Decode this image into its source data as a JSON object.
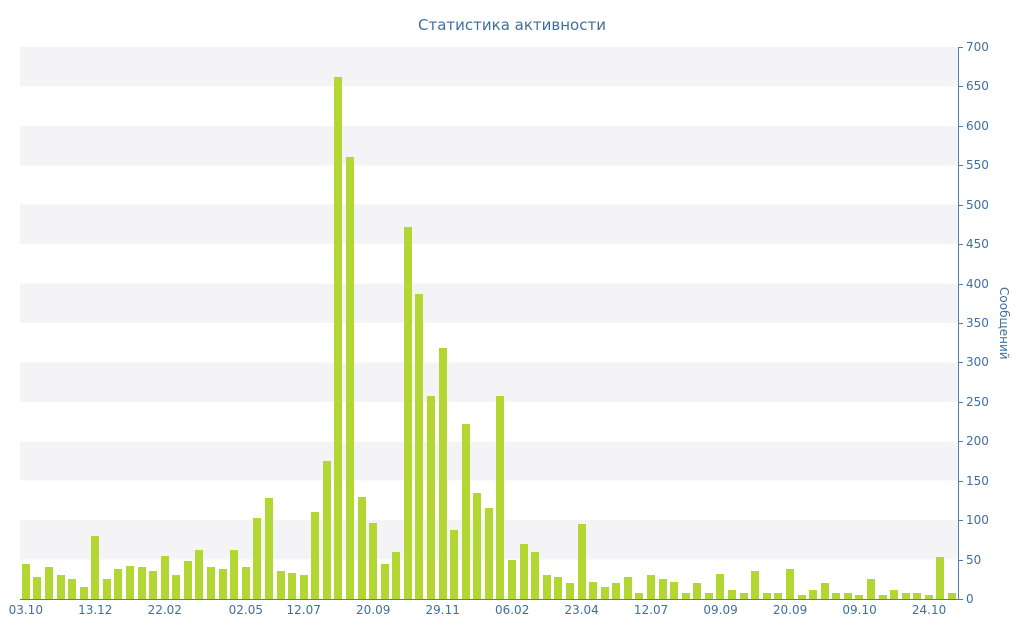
{
  "title": "Статистика активности",
  "chart_data": {
    "type": "bar",
    "title": "Статистика активности",
    "xlabel": "",
    "ylabel": "Сообщений",
    "ylim": [
      0,
      700
    ],
    "y_tick_step": 50,
    "y_ticks": [
      0,
      50,
      100,
      150,
      200,
      250,
      300,
      350,
      400,
      450,
      500,
      550,
      600,
      650,
      700
    ],
    "legend": "none",
    "grid": "alternating-horizontal-bands",
    "bar_color": "#b2d733",
    "axis_color": "#4f7dab",
    "text_color": "#3f6f9f",
    "band_color": "#f4f4f7",
    "background_color": "#ffffff",
    "values": [
      45,
      28,
      40,
      30,
      25,
      15,
      80,
      25,
      38,
      42,
      40,
      35,
      55,
      30,
      48,
      62,
      40,
      38,
      62,
      40,
      103,
      128,
      35,
      33,
      30,
      110,
      175,
      662,
      560,
      130,
      97,
      45,
      60,
      472,
      387,
      258,
      318,
      88,
      222,
      135,
      115,
      258,
      50,
      70,
      60,
      30,
      28,
      20,
      95,
      22,
      15,
      20,
      28,
      8,
      30,
      25,
      22,
      8,
      20,
      8,
      32,
      12,
      8,
      35,
      8,
      8,
      38,
      5,
      12,
      20,
      8,
      8,
      5,
      25,
      5,
      12,
      8,
      8,
      5,
      53,
      8
    ],
    "x_tick_labels": [
      {
        "index": 0,
        "label": "03.10"
      },
      {
        "index": 6,
        "label": "13.12"
      },
      {
        "index": 12,
        "label": "22.02"
      },
      {
        "index": 19,
        "label": "02.05"
      },
      {
        "index": 24,
        "label": "12.07"
      },
      {
        "index": 30,
        "label": "20.09"
      },
      {
        "index": 36,
        "label": "29.11"
      },
      {
        "index": 42,
        "label": "06.02"
      },
      {
        "index": 48,
        "label": "23.04"
      },
      {
        "index": 54,
        "label": "12.07"
      },
      {
        "index": 60,
        "label": "09.09"
      },
      {
        "index": 66,
        "label": "20.09"
      },
      {
        "index": 72,
        "label": "09.10"
      },
      {
        "index": 78,
        "label": "24.10"
      }
    ]
  }
}
